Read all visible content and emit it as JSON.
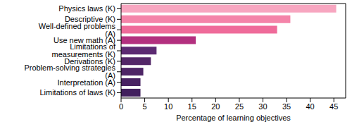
{
  "chart_data": {
    "type": "bar",
    "orientation": "horizontal",
    "categories": [
      "Physics laws (K)",
      "Descriptive (K)",
      "Well-defined problems (A)",
      "Use new math (A)",
      "Limitations of measurements (K)",
      "Derivations (K)",
      "Problem-solving strategies (A)",
      "Interpretation (A)",
      "Limitations of laws (K)"
    ],
    "values": [
      45.5,
      35.8,
      33.0,
      15.8,
      7.5,
      6.3,
      4.7,
      4.1,
      4.1
    ],
    "colors": [
      "#f7a6c0",
      "#f484a9",
      "#ef6b9a",
      "#b3307f",
      "#5c2a72",
      "#532768",
      "#4e2566",
      "#482262",
      "#42205e"
    ],
    "xlabel": "Percentage of learning objectives",
    "xlim": [
      0,
      47.5
    ],
    "xticks": [
      0,
      5,
      10,
      15,
      20,
      25,
      30,
      35,
      40,
      45
    ]
  }
}
